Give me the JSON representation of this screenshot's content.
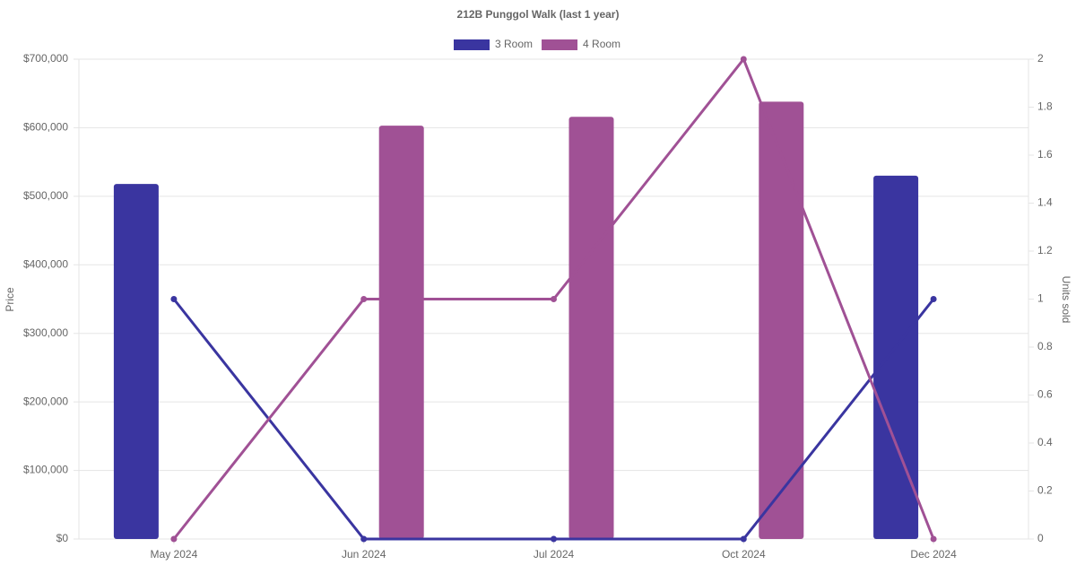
{
  "chart_data": {
    "type": "bar",
    "title": "212B Punggol Walk (last 1 year)",
    "y_label": "Price",
    "y2_label": "Units sold",
    "categories": [
      "May 2024",
      "Jun 2024",
      "Jul 2024",
      "Oct 2024",
      "Dec 2024"
    ],
    "series": [
      {
        "name": "3 Room",
        "color": "#3a35a0",
        "type": "bar",
        "values": [
          518000,
          null,
          null,
          null,
          530000
        ]
      },
      {
        "name": "4 Room",
        "color": "#a05195",
        "type": "bar",
        "values": [
          null,
          603000,
          616000,
          638000,
          null
        ]
      },
      {
        "color": "#3a35a0",
        "type": "line",
        "axis": "y2",
        "values": [
          1,
          0,
          0,
          0,
          1
        ]
      },
      {
        "color": "#a05195",
        "type": "line",
        "axis": "y2",
        "values": [
          0,
          1,
          1,
          2,
          0
        ]
      }
    ],
    "ylim": [
      0,
      700000
    ],
    "yticks": [
      {
        "value": 0,
        "label": "$0"
      },
      {
        "value": 100000,
        "label": "$100,000"
      },
      {
        "value": 200000,
        "label": "$200,000"
      },
      {
        "value": 300000,
        "label": "$300,000"
      },
      {
        "value": 400000,
        "label": "$400,000"
      },
      {
        "value": 500000,
        "label": "$500,000"
      },
      {
        "value": 600000,
        "label": "$600,000"
      },
      {
        "value": 700000,
        "label": "$700,000"
      }
    ],
    "y2lim": [
      0,
      2
    ],
    "y2ticks": [
      0,
      0.2,
      0.4,
      0.6,
      0.8,
      1,
      1.2,
      1.4,
      1.6,
      1.8,
      2
    ],
    "grid": true
  }
}
